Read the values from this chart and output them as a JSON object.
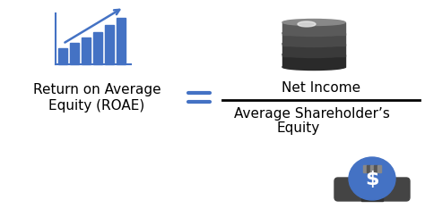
{
  "bg_color": "#ffffff",
  "left_label_line1": "Return on Average",
  "left_label_line2": "Equity (ROAE)",
  "equals_color": "#4472c4",
  "numerator": "Net Income",
  "denominator_line1": "Average Shareholder’s",
  "denominator_line2": "Equity",
  "fraction_line_color": "#000000",
  "text_color": "#000000",
  "icon_color_blue": "#4472c4",
  "label_fontsize": 11,
  "numerator_fontsize": 11,
  "denominator_fontsize": 11
}
